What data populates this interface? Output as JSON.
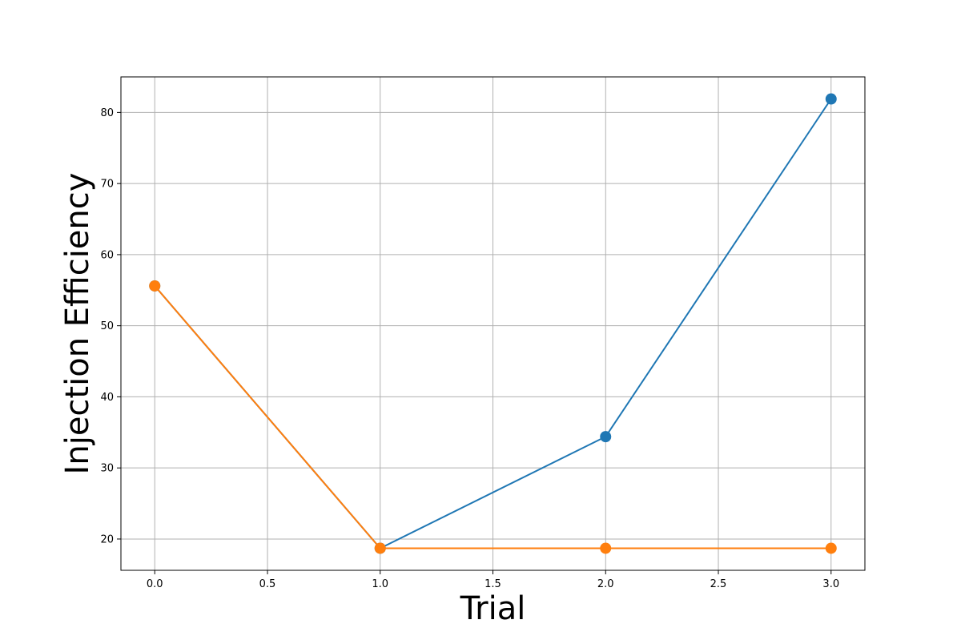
{
  "chart_data": {
    "type": "line",
    "title": "",
    "xlabel": "Trial",
    "ylabel": "Injection Efficiency",
    "xlim": [
      -0.15,
      3.15
    ],
    "ylim": [
      15.6,
      85.0
    ],
    "xticks": [
      0.0,
      0.5,
      1.0,
      1.5,
      2.0,
      2.5,
      3.0
    ],
    "xtick_labels": [
      "0.0",
      "0.5",
      "1.0",
      "1.5",
      "2.0",
      "2.5",
      "3.0"
    ],
    "yticks": [
      20,
      30,
      40,
      50,
      60,
      70,
      80
    ],
    "ytick_labels": [
      "20",
      "30",
      "40",
      "50",
      "60",
      "70",
      "80"
    ],
    "grid": true,
    "legend": "none",
    "series": [
      {
        "color": "#1f77b4",
        "x": [
          0,
          1,
          2,
          3
        ],
        "y": [
          55.6,
          18.7,
          34.4,
          81.9
        ]
      },
      {
        "color": "#ff7f0e",
        "x": [
          0,
          1,
          2,
          3
        ],
        "y": [
          55.6,
          18.7,
          18.7,
          18.7
        ]
      }
    ]
  }
}
